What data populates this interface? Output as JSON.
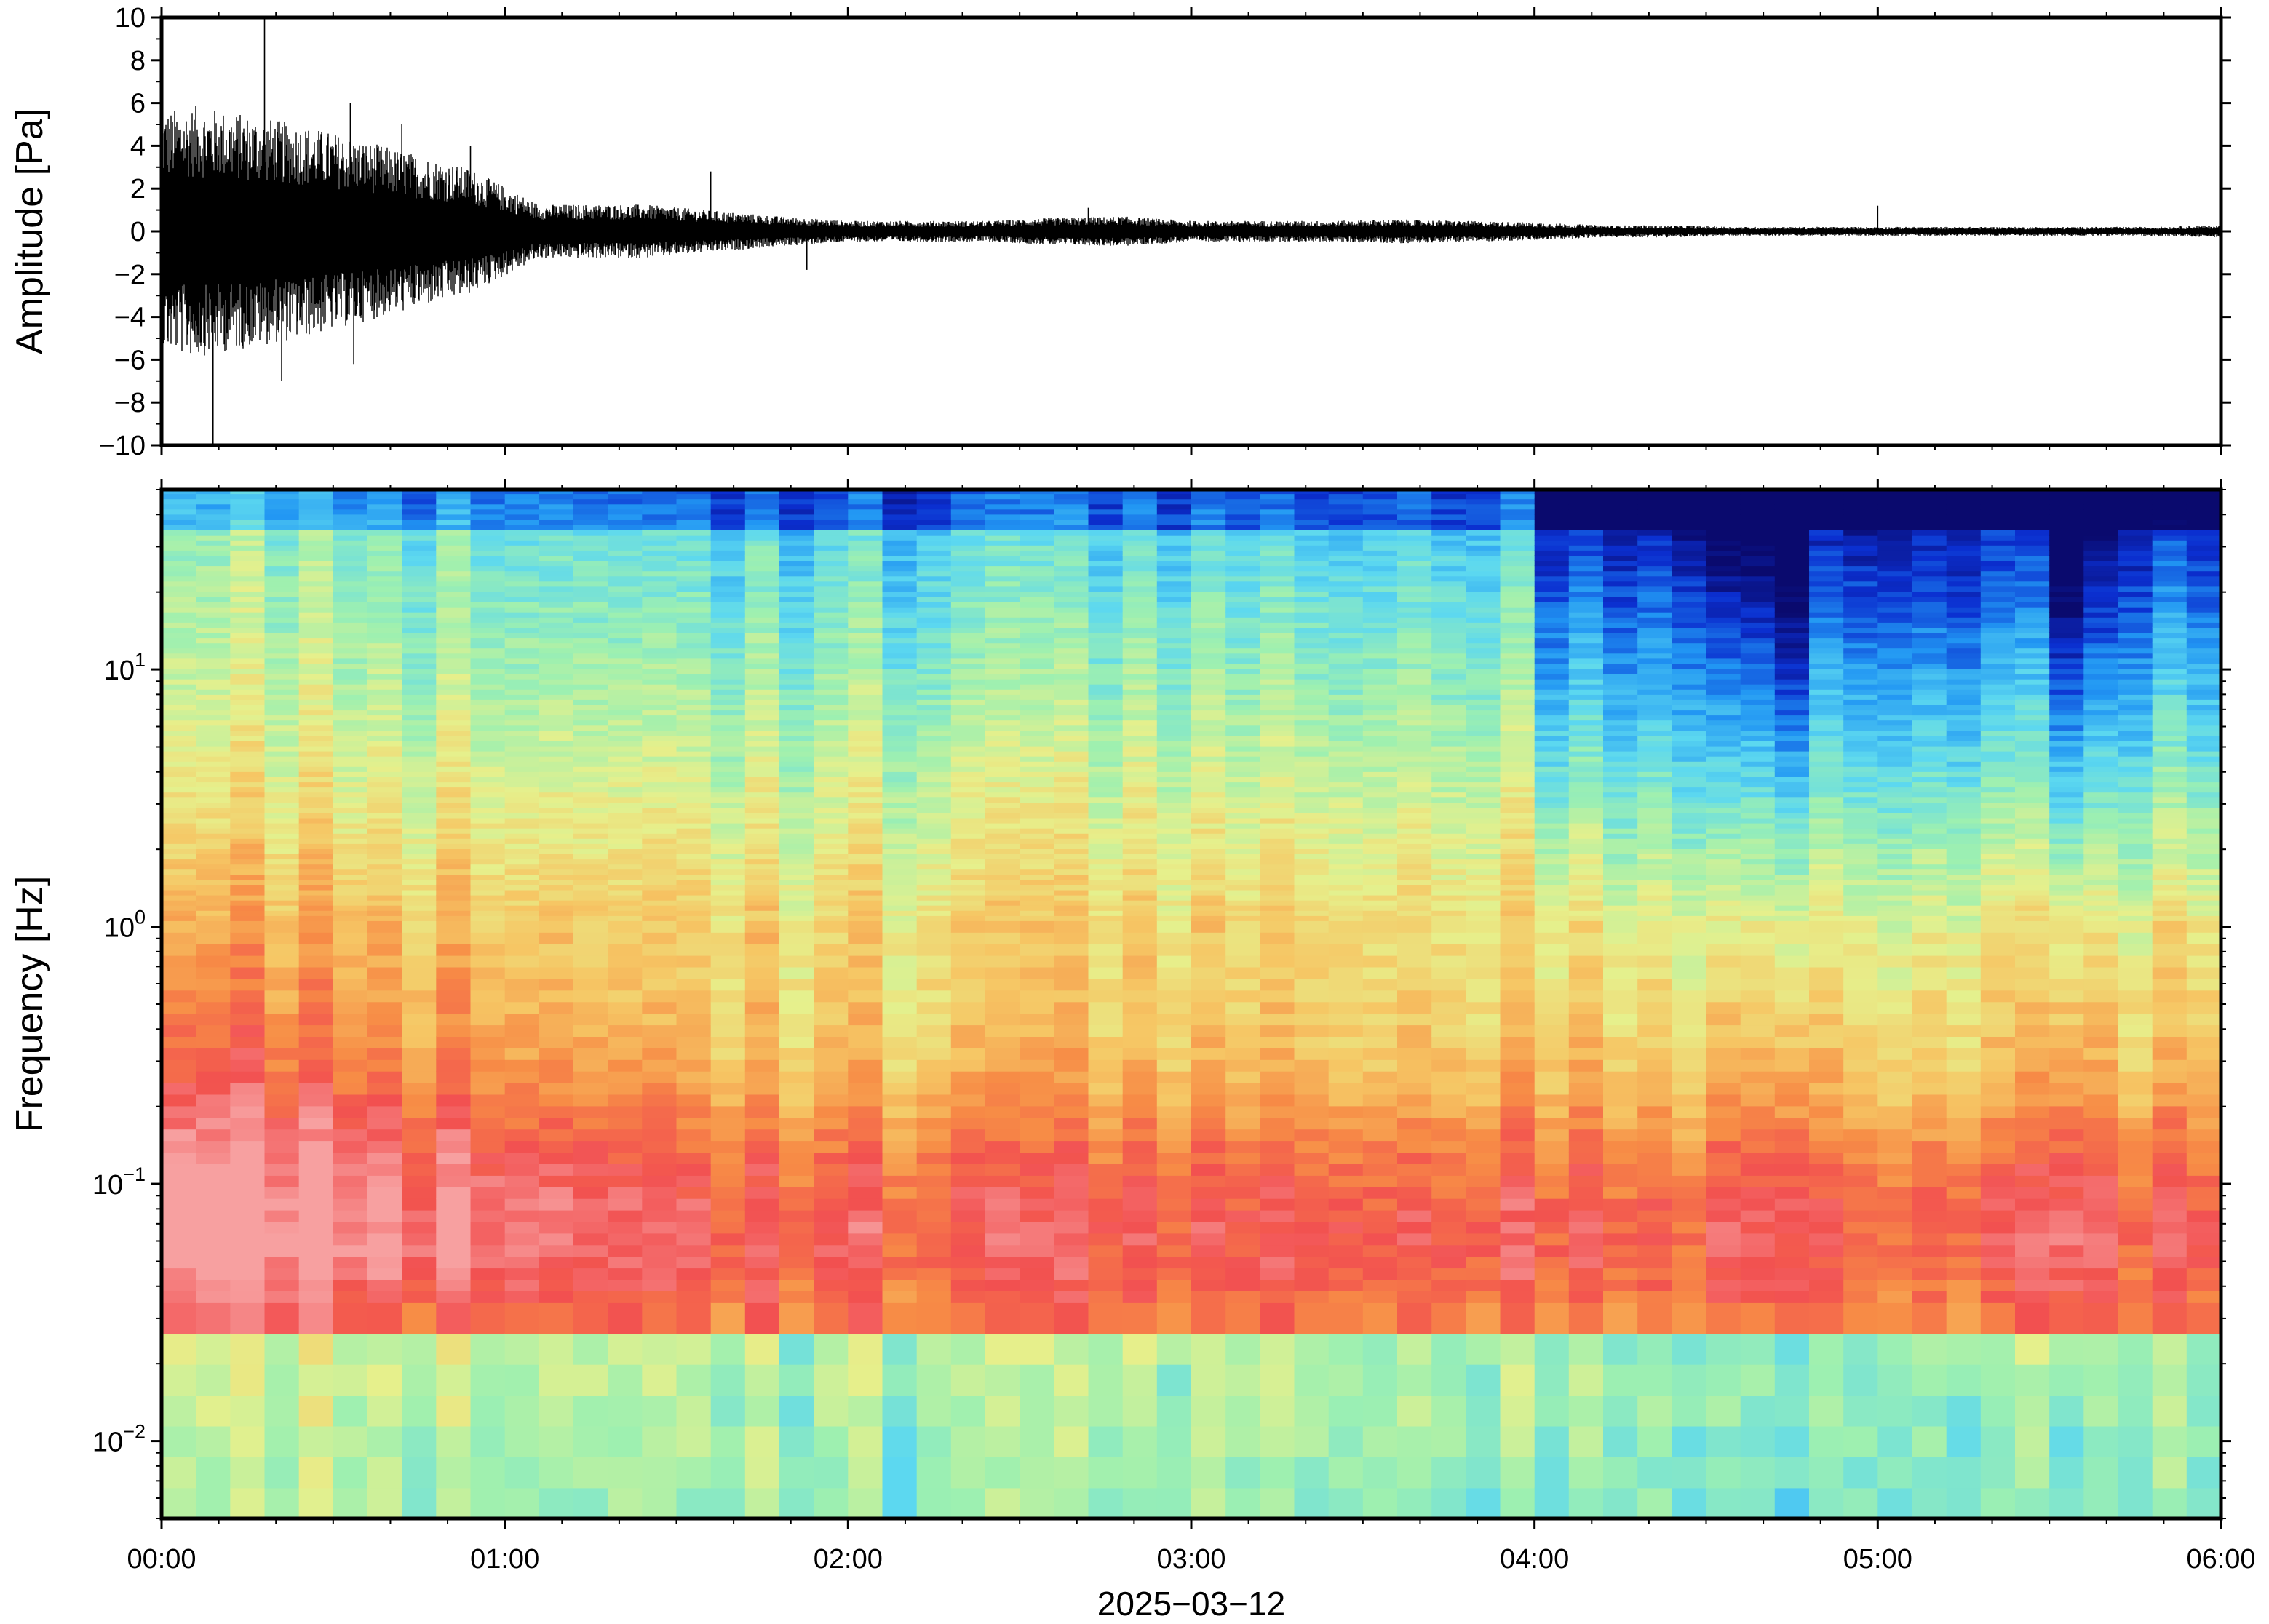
{
  "chart_data": [
    {
      "type": "line",
      "panel": "waveform",
      "ylabel": "Amplitude [Pa]",
      "ylim": [
        -10,
        10
      ],
      "yticks": [
        -10,
        -8,
        -6,
        -4,
        -2,
        0,
        2,
        4,
        6,
        8,
        10
      ],
      "ytick_labels": [
        "−10",
        "−8",
        "−6",
        "−4",
        "−2",
        "0",
        "2",
        "4",
        "6",
        "8",
        "10"
      ],
      "xlim_hours": [
        0,
        6
      ],
      "envelope": {
        "x_hours": [
          0.0,
          0.1,
          0.2,
          0.3,
          0.4,
          0.5,
          0.6,
          0.7,
          0.8,
          0.9,
          1.0,
          1.1,
          1.2,
          1.4,
          1.6,
          1.8,
          2.0,
          2.2,
          2.4,
          2.6,
          2.8,
          3.0,
          3.2,
          3.4,
          3.6,
          3.8,
          4.0,
          4.2,
          4.4,
          4.6,
          4.8,
          5.0,
          5.2,
          5.4,
          5.6,
          5.8,
          6.0
        ],
        "amplitude": [
          4.0,
          4.2,
          4.0,
          3.8,
          3.6,
          3.3,
          3.0,
          2.7,
          2.4,
          2.1,
          1.5,
          0.9,
          0.9,
          0.9,
          0.7,
          0.5,
          0.35,
          0.35,
          0.35,
          0.45,
          0.5,
          0.35,
          0.35,
          0.35,
          0.4,
          0.35,
          0.3,
          0.2,
          0.2,
          0.15,
          0.15,
          0.15,
          0.15,
          0.15,
          0.15,
          0.15,
          0.2
        ]
      },
      "spikes": [
        {
          "x_hours": 0.15,
          "y": -10.0
        },
        {
          "x_hours": 0.3,
          "y": 10.0
        },
        {
          "x_hours": 0.35,
          "y": -7.0
        },
        {
          "x_hours": 0.55,
          "y": 6.0
        },
        {
          "x_hours": 0.56,
          "y": -6.2
        },
        {
          "x_hours": 0.7,
          "y": 5.0
        },
        {
          "x_hours": 0.9,
          "y": 4.0
        },
        {
          "x_hours": 1.6,
          "y": 2.8
        },
        {
          "x_hours": 1.88,
          "y": -1.8
        },
        {
          "x_hours": 2.7,
          "y": 1.1
        },
        {
          "x_hours": 5.0,
          "y": 1.2
        }
      ]
    },
    {
      "type": "heatmap",
      "panel": "spectrogram",
      "ylabel": "Frequency [Hz]",
      "yscale": "log",
      "ylim": [
        0.005,
        50
      ],
      "yticks": [
        0.01,
        0.1,
        1,
        10
      ],
      "ytick_labels": [
        {
          "base": "10",
          "exp": "−2"
        },
        {
          "base": "10",
          "exp": "−1"
        },
        {
          "base": "10",
          "exp": "0"
        },
        {
          "base": "10",
          "exp": "1"
        }
      ],
      "xlim_hours": [
        0,
        6
      ],
      "colormap": [
        "#0a0a6e",
        "#0b2fd0",
        "#2196f3",
        "#5cd8f0",
        "#9ef0b0",
        "#e6f08c",
        "#f6c664",
        "#f78c46",
        "#f25050",
        "#f7a0a0"
      ],
      "time_columns": 60,
      "note_color_scale": "relative power, 0 = dark blue, 1 = light red",
      "power_model": {
        "early_hours": 1.7,
        "quiet_start_hours": 4.05,
        "dark_columns_hours": [
          4.6,
          4.75,
          5.55,
          5.6
        ]
      }
    }
  ],
  "x_axis": {
    "tick_hours": [
      0,
      1,
      2,
      3,
      4,
      5,
      6
    ],
    "tick_labels": [
      "00:00",
      "01:00",
      "02:00",
      "03:00",
      "04:00",
      "05:00",
      "06:00"
    ],
    "date_label": "2025−03−12"
  }
}
